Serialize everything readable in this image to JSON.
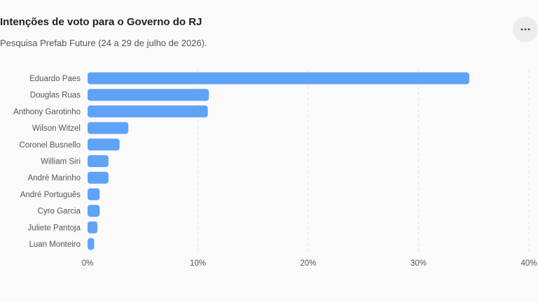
{
  "header": {
    "title": "Intenções de voto para o Governo do RJ",
    "subtitle": "Pesquisa Prefab Future (24 a 29 de julho de 2026).",
    "menu_icon": "more-horizontal-icon"
  },
  "colors": {
    "bar": "#5fa3f7",
    "grid": "#e2e2e2",
    "text": "#555555"
  },
  "chart_data": {
    "type": "bar",
    "orientation": "horizontal",
    "categories": [
      "Eduardo Paes",
      "Douglas Ruas",
      "Anthony Garotinho",
      "Wilson Witzel",
      "Coronel Busnello",
      "William Siri",
      "André Marinho",
      "André Português",
      "Cyro Garcia",
      "Juliete Pantoja",
      "Luan Monteiro"
    ],
    "values": [
      34.6,
      11.0,
      10.9,
      3.7,
      2.9,
      1.9,
      1.9,
      1.1,
      1.1,
      0.9,
      0.6
    ],
    "xlim": [
      0,
      40
    ],
    "xticks": [
      0,
      10,
      20,
      30,
      40
    ],
    "tick_format": "{v}%",
    "grid": true,
    "title": "",
    "xlabel": "",
    "ylabel": ""
  }
}
